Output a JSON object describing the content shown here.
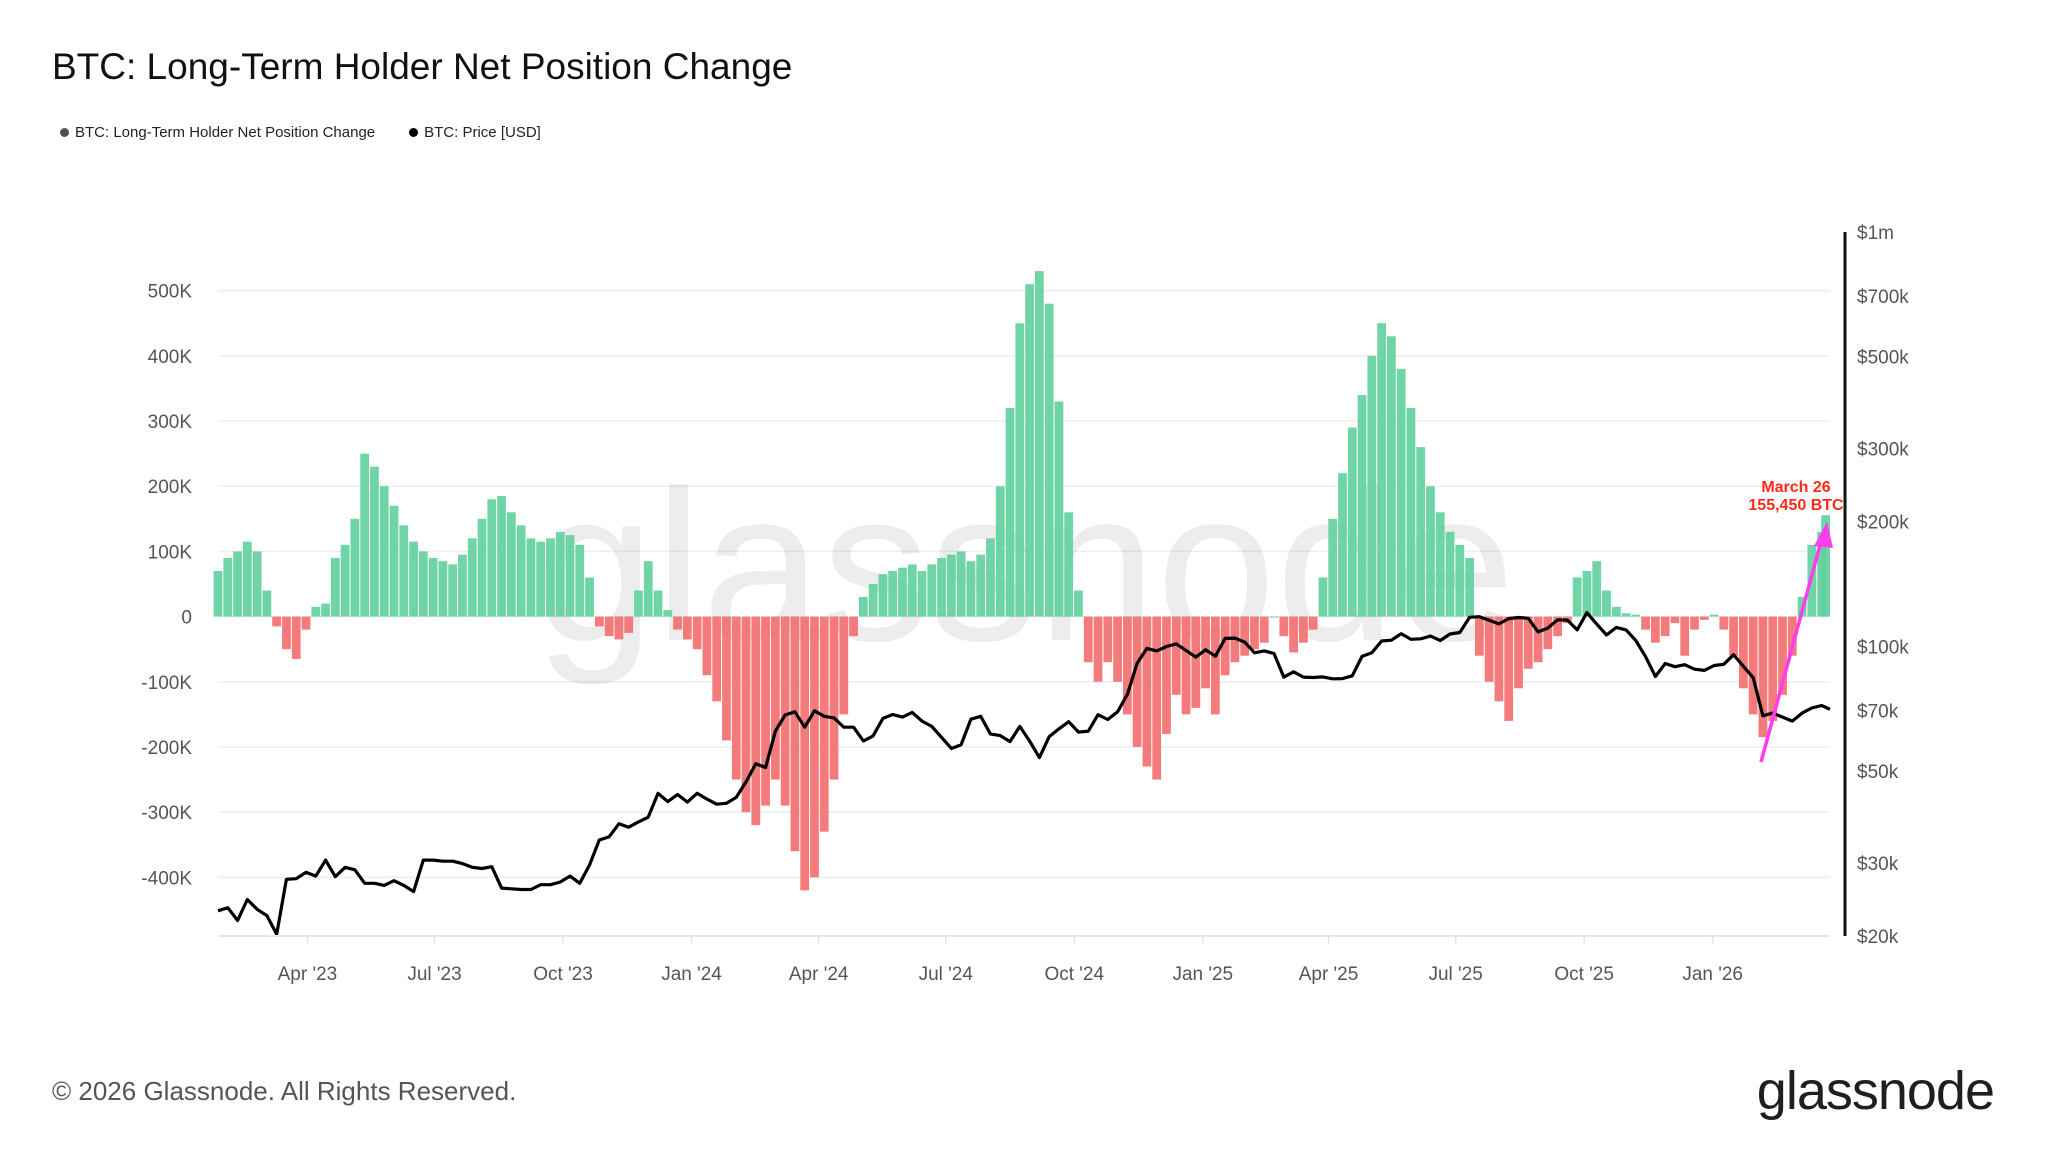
{
  "title": "BTC: Long-Term Holder Net Position Change",
  "legend": [
    {
      "label": "BTC: Long-Term Holder Net Position Change",
      "color": "#4b4f5c"
    },
    {
      "label": "BTC: Price [USD]",
      "color": "#000000"
    }
  ],
  "footer": {
    "copyright": "© 2026 Glassnode. All Rights Reserved.",
    "logo": "glassnode",
    "watermark": "glassnode"
  },
  "chart_data": {
    "type": "bar+line",
    "title": "BTC: Long-Term Holder Net Position Change",
    "colors": {
      "positive": "#5fcf9c",
      "negative": "#f26d6d",
      "price": "#000000",
      "annotation": "#ff2a1a",
      "arrow": "#ff3cf0"
    },
    "left_axis": {
      "ticks": [
        500000,
        400000,
        300000,
        200000,
        100000,
        0,
        -100000,
        -200000,
        -300000,
        -400000
      ],
      "tick_labels": [
        "500K",
        "400K",
        "300K",
        "200K",
        "100K",
        "0",
        "-100K",
        "-200K",
        "-300K",
        "-400K"
      ],
      "range": [
        -490000,
        590000
      ]
    },
    "right_axis": {
      "scale": "log",
      "ticks": [
        1000000,
        700000,
        500000,
        300000,
        200000,
        100000,
        70000,
        50000,
        30000,
        20000
      ],
      "tick_labels": [
        "$1m",
        "$700k",
        "$500k",
        "$300k",
        "$200k",
        "$100k",
        "$70k",
        "$50k",
        "$30k",
        "$20k"
      ],
      "range": [
        20000,
        1000000
      ]
    },
    "x_axis": {
      "range": [
        "2023-01-27",
        "2026-03-26"
      ],
      "ticks": [
        "2023-04-01",
        "2023-07-01",
        "2023-10-01",
        "2024-01-01",
        "2024-04-01",
        "2024-07-01",
        "2024-10-01",
        "2025-01-01",
        "2025-04-01",
        "2025-07-01",
        "2025-10-01",
        "2026-01-01"
      ],
      "tick_labels": [
        "Apr '23",
        "Jul '23",
        "Oct '23",
        "Jan '24",
        "Apr '24",
        "Jul '24",
        "Oct '24",
        "Jan '25",
        "Apr '25",
        "Jul '25",
        "Oct '25",
        "Jan '26"
      ]
    },
    "grid": true,
    "annotation": {
      "line1": "March 26",
      "line2": "155,450 BTC",
      "date": "2026-03-26",
      "value": 155450
    },
    "dates": [
      "2023-01-27",
      "2023-02-03",
      "2023-02-10",
      "2023-02-17",
      "2023-02-24",
      "2023-03-03",
      "2023-03-10",
      "2023-03-17",
      "2023-03-24",
      "2023-03-31",
      "2023-04-07",
      "2023-04-14",
      "2023-04-21",
      "2023-04-28",
      "2023-05-05",
      "2023-05-12",
      "2023-05-19",
      "2023-05-26",
      "2023-06-02",
      "2023-06-09",
      "2023-06-16",
      "2023-06-23",
      "2023-06-30",
      "2023-07-07",
      "2023-07-14",
      "2023-07-21",
      "2023-07-28",
      "2023-08-04",
      "2023-08-11",
      "2023-08-18",
      "2023-08-25",
      "2023-09-01",
      "2023-09-08",
      "2023-09-15",
      "2023-09-22",
      "2023-09-29",
      "2023-10-06",
      "2023-10-13",
      "2023-10-20",
      "2023-10-27",
      "2023-11-03",
      "2023-11-10",
      "2023-11-17",
      "2023-11-24",
      "2023-12-01",
      "2023-12-08",
      "2023-12-15",
      "2023-12-22",
      "2023-12-29",
      "2024-01-05",
      "2024-01-12",
      "2024-01-19",
      "2024-01-26",
      "2024-02-02",
      "2024-02-09",
      "2024-02-16",
      "2024-02-23",
      "2024-03-01",
      "2024-03-08",
      "2024-03-15",
      "2024-03-22",
      "2024-03-29",
      "2024-04-05",
      "2024-04-12",
      "2024-04-19",
      "2024-04-26",
      "2024-05-03",
      "2024-05-10",
      "2024-05-17",
      "2024-05-24",
      "2024-05-31",
      "2024-06-07",
      "2024-06-14",
      "2024-06-21",
      "2024-06-28",
      "2024-07-05",
      "2024-07-12",
      "2024-07-19",
      "2024-07-26",
      "2024-08-02",
      "2024-08-09",
      "2024-08-16",
      "2024-08-23",
      "2024-08-30",
      "2024-09-06",
      "2024-09-13",
      "2024-09-20",
      "2024-09-27",
      "2024-10-04",
      "2024-10-11",
      "2024-10-18",
      "2024-10-25",
      "2024-11-01",
      "2024-11-08",
      "2024-11-15",
      "2024-11-22",
      "2024-11-29",
      "2024-12-06",
      "2024-12-13",
      "2024-12-20",
      "2024-12-27",
      "2025-01-03",
      "2025-01-10",
      "2025-01-17",
      "2025-01-24",
      "2025-01-31",
      "2025-02-07",
      "2025-02-14",
      "2025-02-21",
      "2025-02-28",
      "2025-03-07",
      "2025-03-14",
      "2025-03-21",
      "2025-03-28",
      "2025-04-04",
      "2025-04-11",
      "2025-04-18",
      "2025-04-25",
      "2025-05-02",
      "2025-05-09",
      "2025-05-16",
      "2025-05-23",
      "2025-05-30",
      "2025-06-06",
      "2025-06-13",
      "2025-06-20",
      "2025-06-27",
      "2025-07-04",
      "2025-07-11",
      "2025-07-18",
      "2025-07-25",
      "2025-08-01",
      "2025-08-08",
      "2025-08-15",
      "2025-08-22",
      "2025-08-29",
      "2025-09-05",
      "2025-09-12",
      "2025-09-19",
      "2025-09-26",
      "2025-10-03",
      "2025-10-10",
      "2025-10-17",
      "2025-10-24",
      "2025-10-31",
      "2025-11-07",
      "2025-11-14",
      "2025-11-21",
      "2025-11-28",
      "2025-12-05",
      "2025-12-12",
      "2025-12-19",
      "2025-12-26",
      "2026-01-02",
      "2026-01-09",
      "2026-01-16",
      "2026-01-23",
      "2026-01-30",
      "2026-02-06",
      "2026-02-13",
      "2026-02-20",
      "2026-02-27",
      "2026-03-06",
      "2026-03-13",
      "2026-03-20",
      "2026-03-26"
    ],
    "series": [
      {
        "name": "BTC: Long-Term Holder Net Position Change",
        "type": "bar",
        "axis": "left",
        "values": [
          70000,
          90000,
          100000,
          115000,
          100000,
          40000,
          -15000,
          -50000,
          -65000,
          -20000,
          15000,
          20000,
          90000,
          110000,
          150000,
          250000,
          230000,
          200000,
          170000,
          140000,
          115000,
          100000,
          90000,
          85000,
          80000,
          95000,
          120000,
          150000,
          180000,
          185000,
          160000,
          140000,
          120000,
          115000,
          120000,
          130000,
          125000,
          110000,
          60000,
          -15000,
          -30000,
          -35000,
          -25000,
          40000,
          85000,
          40000,
          10000,
          -20000,
          -35000,
          -50000,
          -90000,
          -130000,
          -190000,
          -250000,
          -300000,
          -320000,
          -290000,
          -250000,
          -290000,
          -360000,
          -420000,
          -400000,
          -330000,
          -250000,
          -150000,
          -30000,
          30000,
          50000,
          65000,
          70000,
          75000,
          80000,
          70000,
          80000,
          90000,
          95000,
          100000,
          85000,
          95000,
          120000,
          200000,
          320000,
          450000,
          510000,
          530000,
          480000,
          330000,
          160000,
          40000,
          -70000,
          -100000,
          -70000,
          -100000,
          -150000,
          -200000,
          -230000,
          -250000,
          -180000,
          -120000,
          -150000,
          -140000,
          -110000,
          -150000,
          -90000,
          -70000,
          -60000,
          -50000,
          -40000,
          0,
          -30000,
          -55000,
          -40000,
          -20000,
          60000,
          150000,
          220000,
          290000,
          340000,
          400000,
          450000,
          430000,
          380000,
          320000,
          260000,
          200000,
          160000,
          130000,
          110000,
          90000,
          -60000,
          -100000,
          -130000,
          -160000,
          -110000,
          -80000,
          -70000,
          -50000,
          -30000,
          -10000,
          60000,
          70000,
          85000,
          40000,
          15000,
          5000,
          3000,
          -20000,
          -40000,
          -30000,
          -10000,
          -60000,
          -20000,
          -5000,
          3000,
          -20000,
          -60000,
          -110000,
          -150000,
          -185000,
          -160000,
          -120000,
          -60000,
          30000,
          110000,
          130000,
          155450
        ]
      },
      {
        "name": "BTC: Price [USD]",
        "type": "line",
        "axis": "right",
        "values": [
          23000,
          23400,
          21800,
          24500,
          23200,
          22400,
          20200,
          27400,
          27500,
          28500,
          27900,
          30500,
          27800,
          29300,
          28900,
          26800,
          26800,
          26500,
          27200,
          26500,
          25600,
          30500,
          30500,
          30300,
          30300,
          29900,
          29300,
          29100,
          29400,
          26100,
          26000,
          25900,
          25900,
          26600,
          26600,
          27000,
          27900,
          26800,
          29700,
          34100,
          34700,
          37300,
          36600,
          37700,
          38700,
          44200,
          42200,
          43900,
          42100,
          44200,
          42800,
          41600,
          41800,
          43200,
          47100,
          52100,
          51000,
          62400,
          68300,
          69500,
          63800,
          69900,
          67800,
          67200,
          63800,
          63800,
          59100,
          60800,
          67000,
          68500,
          67500,
          69300,
          66000,
          64100,
          60300,
          56700,
          57900,
          66700,
          67800,
          61400,
          60900,
          58900,
          64100,
          59100,
          53900,
          60500,
          63200,
          65800,
          62100,
          62400,
          68400,
          66600,
          69500,
          76600,
          91000,
          98900,
          97500,
          99900,
          101400,
          97800,
          94200,
          98100,
          94700,
          104500,
          104700,
          102400,
          96500,
          97500,
          96100,
          84300,
          86800,
          84300,
          84100,
          84400,
          83500,
          83600,
          84900,
          94600,
          96500,
          103000,
          103500,
          107300,
          104000,
          104300,
          105900,
          103300,
          107100,
          108000,
          117500,
          117900,
          115600,
          113300,
          116700,
          117400,
          116900,
          108400,
          110700,
          115900,
          115700,
          109600,
          120600,
          113200,
          106500,
          111100,
          109600,
          103300,
          94400,
          84600,
          90900,
          89300,
          90300,
          88100,
          87500,
          89900,
          90500,
          95500,
          89500,
          84000,
          68000,
          69000,
          67500,
          66000,
          69000,
          71000,
          72000,
          70500
        ]
      }
    ]
  }
}
